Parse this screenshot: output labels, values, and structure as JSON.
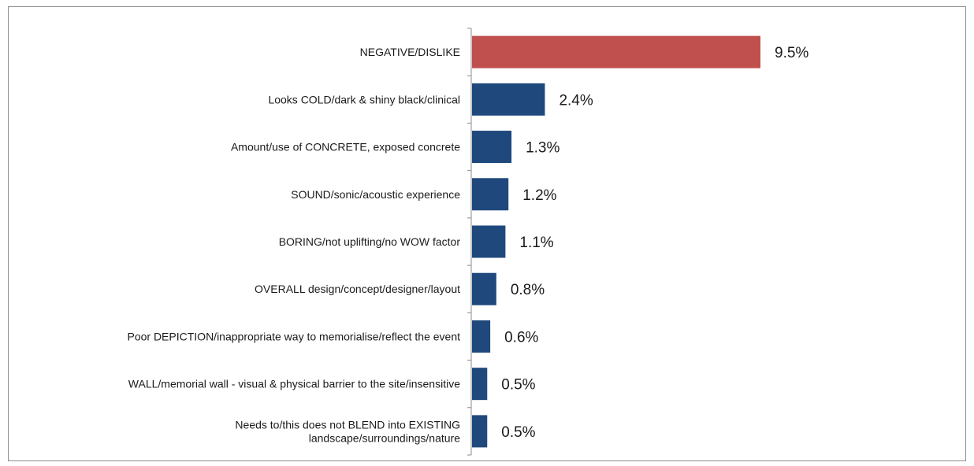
{
  "chart_data": {
    "type": "bar",
    "orientation": "horizontal",
    "title": "",
    "xlabel": "",
    "ylabel": "",
    "grid": false,
    "xlim": [
      0,
      9.5
    ],
    "categories": [
      [
        "NEGATIVE/DISLIKE"
      ],
      [
        "Looks COLD/dark & shiny black/clinical"
      ],
      [
        "Amount/use of CONCRETE, exposed concrete"
      ],
      [
        "SOUND/sonic/acoustic experience"
      ],
      [
        "BORING/not uplifting/no WOW factor"
      ],
      [
        "OVERALL design/concept/designer/layout"
      ],
      [
        "Poor DEPICTION/inappropriate way to memorialise/reflect the event"
      ],
      [
        "WALL/memorial wall - visual & physical barrier to the site/insensitive"
      ],
      [
        "Needs to/this does not BLEND into EXISTING",
        "landscape/surroundings/nature"
      ]
    ],
    "values": [
      9.5,
      2.4,
      1.3,
      1.2,
      1.1,
      0.8,
      0.6,
      0.5,
      0.5
    ],
    "value_labels": [
      "9.5%",
      "2.4%",
      "1.3%",
      "1.2%",
      "1.1%",
      "0.8%",
      "0.6%",
      "0.5%",
      "0.5%"
    ],
    "colors": [
      "#c0504d",
      "#1f497d",
      "#1f497d",
      "#1f497d",
      "#1f497d",
      "#1f497d",
      "#1f497d",
      "#1f497d",
      "#1f497d"
    ]
  }
}
